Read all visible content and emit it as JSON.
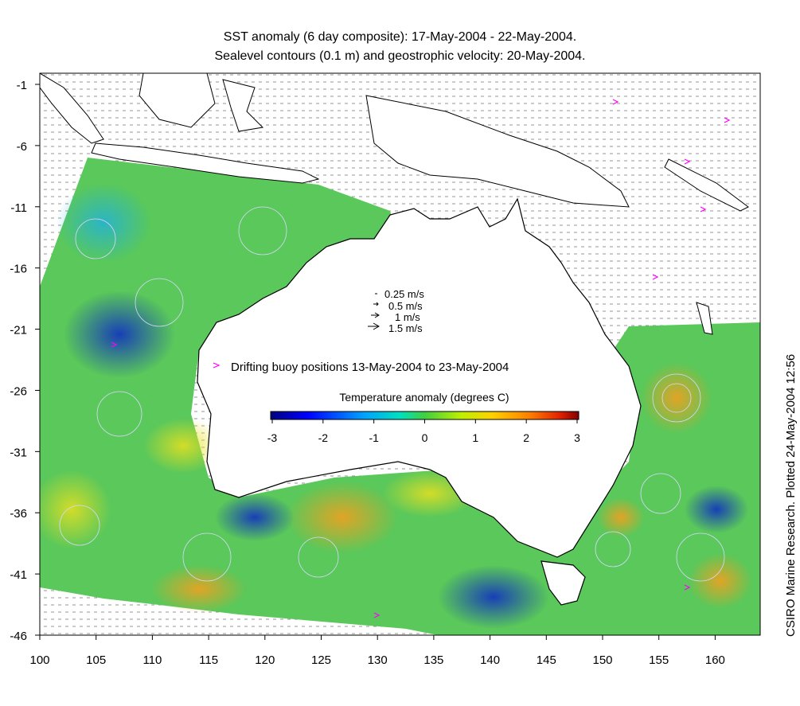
{
  "title_line1": "SST anomaly (6 day composite): 17-May-2004 - 22-May-2004.",
  "title_line2": "Sealevel contours (0.1 m) and geostrophic velocity: 20-May-2004.",
  "credit": "CSIRO Marine Research. Plotted 24-May-2004 12:56",
  "velocity_legend": [
    "0.25 m/s",
    "0.5 m/s",
    "1 m/s",
    "1.5 m/s"
  ],
  "buoy_legend": "Drifting buoy positions 13-May-2004 to 23-May-2004",
  "colorbar": {
    "label": "Temperature anomaly (degrees C)",
    "ticks": [
      "-3",
      "-2",
      "-1",
      "0",
      "1",
      "2",
      "3"
    ],
    "colors": [
      "#00007f",
      "#0000ff",
      "#007fff",
      "#00ffff",
      "#7fff7f",
      "#ffff00",
      "#ff7f00",
      "#ff0000",
      "#7f0000"
    ]
  },
  "lat_ticks": [
    "-1",
    "-6",
    "-11",
    "-16",
    "-21",
    "-26",
    "-31",
    "-36",
    "-41",
    "-46"
  ],
  "lon_ticks": [
    "100",
    "105",
    "110",
    "115",
    "120",
    "125",
    "130",
    "135",
    "140",
    "145",
    "150",
    "155",
    "160"
  ],
  "colors": {
    "land": "#ffffff",
    "coast": "#000000",
    "contour": "#d8d8ff",
    "buoy": "#ff00ff"
  }
}
